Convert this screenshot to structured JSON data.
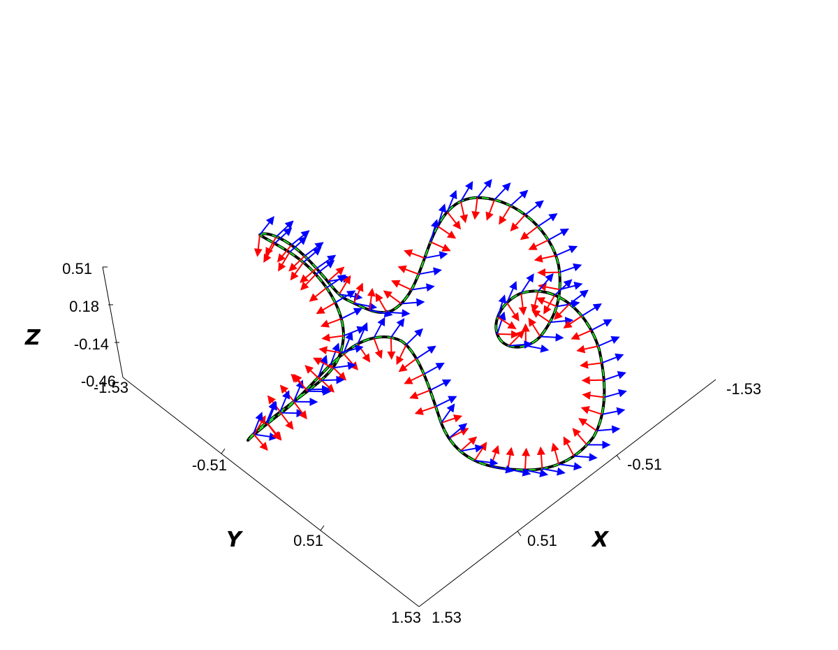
{
  "chart_data": {
    "type": "3d-curve-with-frame-vectors",
    "title": "",
    "axes": {
      "x": {
        "label": "X",
        "ticks": [
          "-1.53",
          "-0.51",
          "0.51",
          "1.53"
        ]
      },
      "y": {
        "label": "Y",
        "ticks": [
          "-1.53",
          "-0.51",
          "0.51",
          "1.53"
        ]
      },
      "z": {
        "label": "Z",
        "ticks": [
          "0.51",
          "0.18",
          "-0.14",
          "-0.46"
        ]
      }
    },
    "grid": false,
    "legend": "none",
    "curve": {
      "description": "closed space curve (pretzel-like knot) drawn as black tube with green tangent segments"
    },
    "vectors": [
      {
        "name": "normal",
        "color": "#ff0000"
      },
      {
        "name": "binormal",
        "color": "#0000ff"
      },
      {
        "name": "tangent",
        "color": "#00dd00"
      }
    ],
    "colors": {
      "curve": "#000000"
    }
  }
}
